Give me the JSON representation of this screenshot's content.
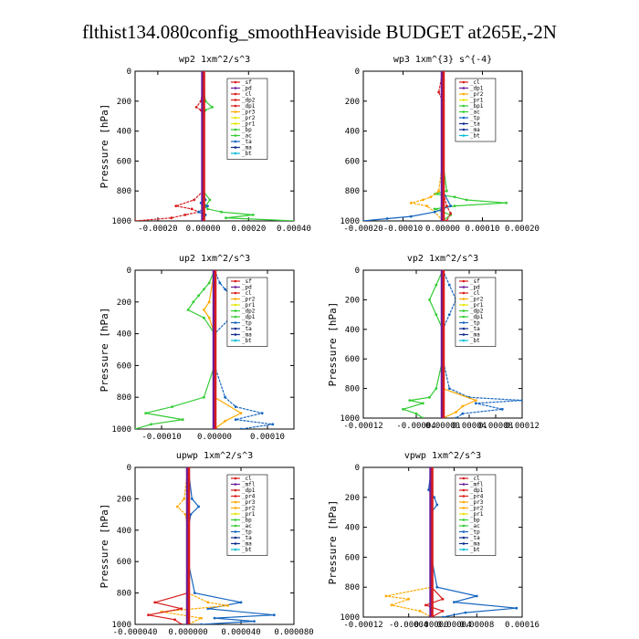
{
  "page_title": "flthist134.080config_smoothHeaviside  BUDGET at265E,-2N",
  "colors": {
    "red": "#d81b1b",
    "darkred": "#a01010",
    "purple": "#6a1b9a",
    "green": "#33cc33",
    "orange": "#ffaa00",
    "yellow": "#e6e600",
    "blue": "#1565c0",
    "darkblue": "#0d2b8c",
    "cyan": "#00bcd4",
    "black": "#000000"
  },
  "chart_data": [
    {
      "type": "line",
      "title": "wp2  1xm^2/s^3",
      "ylabel": "Pressure [hPa]",
      "xlim": [
        -0.0003,
        0.0004
      ],
      "ylim": [
        1000,
        0
      ],
      "xticks": [
        "-0.00020",
        "0.00000",
        "0.00020",
        "0.00040"
      ],
      "xtick_values": [
        -0.0002,
        0.0,
        0.0002,
        0.0004
      ],
      "yticks": [
        "0",
        "200",
        "400",
        "600",
        "800",
        "1000"
      ],
      "legend": [
        "_sf",
        "_pd",
        "_cl",
        "_dp2",
        "_dp1",
        "_pr3",
        "_pr2",
        "_pr1",
        "_bp",
        "_ac",
        "_ta",
        "_ma",
        "_bt"
      ],
      "legend_colors": [
        "red",
        "purple",
        "red",
        "red",
        "red",
        "orange",
        "yellow",
        "yellow",
        "green",
        "green",
        "blue",
        "darkblue",
        "cyan"
      ],
      "series": [
        {
          "name": "_bp",
          "color": "green",
          "y": [
            0,
            100,
            200,
            240,
            260,
            300,
            400,
            600,
            800,
            860,
            900,
            920,
            940,
            960,
            980,
            1000
          ],
          "x": [
            0,
            0,
            1e-05,
            4e-05,
            1e-05,
            0,
            0,
            0,
            0,
            3e-05,
            1e-05,
            2e-05,
            8e-05,
            0.00022,
            0.0001,
            0.0004
          ]
        },
        {
          "name": "_dp1",
          "color": "red",
          "y": [
            0,
            100,
            200,
            240,
            260,
            300,
            400,
            600,
            800,
            860,
            900,
            920,
            940,
            960,
            980,
            1000
          ],
          "x": [
            0,
            0,
            -1e-05,
            -3e-05,
            -1e-05,
            0,
            0,
            0,
            0,
            -4e-05,
            -0.00012,
            -5e-05,
            -2e-05,
            -8e-05,
            -0.00014,
            -0.0003
          ]
        },
        {
          "name": "_ta",
          "color": "blue",
          "y": [
            0,
            200,
            400,
            600,
            800,
            860,
            880,
            900,
            940,
            960,
            1000
          ],
          "x": [
            0,
            0,
            0,
            0,
            0,
            1e-05,
            -1e-05,
            2e-05,
            -2e-05,
            1e-05,
            0
          ]
        },
        {
          "name": "_pd",
          "color": "purple",
          "y": [
            0,
            200,
            400,
            600,
            800,
            1000
          ],
          "x": [
            0,
            0,
            0,
            0,
            0,
            0
          ]
        }
      ]
    },
    {
      "type": "line",
      "title": "wp3  1xm^{3} s^{-4}",
      "ylabel": "",
      "xlim": [
        -0.0002,
        0.0002
      ],
      "ylim": [
        1000,
        0
      ],
      "xticks": [
        "-0.00020",
        "-0.00010",
        "0.00000",
        "0.00010",
        "0.00020"
      ],
      "xtick_values": [
        -0.0002,
        -0.0001,
        0.0,
        0.0001,
        0.0002
      ],
      "yticks": [
        "0",
        "200",
        "400",
        "600",
        "800",
        "1000"
      ],
      "legend": [
        "_cl",
        "_dp1",
        "_pr2",
        "_pr1",
        "_bp1",
        "_ac",
        "_tp",
        "_ta",
        "_ma",
        "_bt"
      ],
      "legend_colors": [
        "red",
        "purple",
        "orange",
        "yellow",
        "green",
        "green",
        "blue",
        "darkblue",
        "darkblue",
        "cyan"
      ],
      "series": [
        {
          "name": "_bp1",
          "color": "green",
          "y": [
            0,
            200,
            400,
            600,
            800,
            820,
            840,
            860,
            880,
            900,
            920,
            960,
            1000
          ],
          "x": [
            0,
            0,
            0,
            0,
            1e-05,
            -2e-05,
            3e-05,
            6e-05,
            0.00016,
            3e-05,
            -2e-05,
            2e-05,
            0
          ]
        },
        {
          "name": "_pr2",
          "color": "orange",
          "y": [
            0,
            200,
            400,
            600,
            800,
            840,
            860,
            880,
            900,
            940,
            1000
          ],
          "x": [
            0,
            0,
            0,
            0,
            -1e-05,
            -3e-05,
            -5e-05,
            -8e-05,
            -4e-05,
            -2e-05,
            0
          ]
        },
        {
          "name": "_tp",
          "color": "blue",
          "y": [
            0,
            200,
            400,
            600,
            800,
            900,
            940,
            970,
            985,
            1000
          ],
          "x": [
            0,
            0,
            0,
            0,
            0,
            2e-05,
            -2e-05,
            -8e-05,
            -0.00014,
            -0.0002
          ]
        },
        {
          "name": "_cl",
          "color": "red",
          "y": [
            0,
            140,
            200,
            400,
            600,
            800,
            900,
            950,
            1000
          ],
          "x": [
            0,
            -1e-05,
            0,
            0,
            0,
            0,
            1e-05,
            2e-05,
            1e-05
          ]
        }
      ]
    },
    {
      "type": "line",
      "title": "up2  1xm^2/s^3",
      "ylabel": "Pressure [hPa]",
      "xlim": [
        -0.00015,
        0.00015
      ],
      "ylim": [
        1000,
        0
      ],
      "xticks": [
        "-0.00010",
        "0.00000",
        "0.00010"
      ],
      "xtick_values": [
        -0.0001,
        0.0,
        0.0001
      ],
      "yticks": [
        "0",
        "200",
        "400",
        "600",
        "800",
        "1000"
      ],
      "legend": [
        "_sf",
        "_pd",
        "_cl",
        "_pr2",
        "_pr1",
        "_dp2",
        "_dp1",
        "_tp",
        "_ta",
        "_ma",
        "_bt"
      ],
      "legend_colors": [
        "red",
        "purple",
        "red",
        "orange",
        "yellow",
        "green",
        "green",
        "blue",
        "darkblue",
        "darkblue",
        "cyan"
      ],
      "series": [
        {
          "name": "_dp1",
          "color": "green",
          "y": [
            0,
            80,
            120,
            160,
            200,
            250,
            300,
            400,
            600,
            800,
            860,
            900,
            940,
            970,
            1000
          ],
          "x": [
            0,
            -1e-05,
            -2e-05,
            -3e-05,
            -4e-05,
            -5e-05,
            -2e-05,
            0,
            0,
            -2e-05,
            -8e-05,
            -0.00013,
            -6e-05,
            -0.00012,
            -0.00015
          ]
        },
        {
          "name": "_tp",
          "color": "blue",
          "y": [
            0,
            80,
            120,
            160,
            200,
            250,
            300,
            400,
            600,
            800,
            860,
            900,
            940,
            970,
            1000
          ],
          "x": [
            0,
            1e-05,
            2e-05,
            3e-05,
            5e-05,
            8e-05,
            3e-05,
            0,
            0,
            2e-05,
            4e-05,
            9e-05,
            4e-05,
            0.00011,
            5e-05
          ]
        },
        {
          "name": "_pr2",
          "color": "orange",
          "y": [
            0,
            200,
            250,
            300,
            400,
            600,
            800,
            900,
            950,
            1000
          ],
          "x": [
            0,
            -1e-05,
            -2e-05,
            -1e-05,
            0,
            0,
            0,
            5e-05,
            2e-05,
            0
          ]
        },
        {
          "name": "_cl",
          "color": "red",
          "y": [
            0,
            200,
            400,
            600,
            800,
            1000
          ],
          "x": [
            0,
            0,
            0,
            0,
            0,
            0
          ]
        }
      ]
    },
    {
      "type": "line",
      "title": "vp2  1xm^2/s^3",
      "ylabel": "Pressure [hPa]",
      "xlim": [
        -0.00012,
        0.00012
      ],
      "ylim": [
        1000,
        0
      ],
      "xticks": [
        "-0.00012",
        "-0.00004",
        "0.00000",
        "0.00004",
        "0.00008",
        "0.00012"
      ],
      "xtick_values": [
        -0.00012,
        -4e-05,
        0.0,
        4e-05,
        8e-05,
        0.00012
      ],
      "yticks": [
        "0",
        "200",
        "400",
        "600",
        "800",
        "1000"
      ],
      "legend": [
        "_sf",
        "_pd",
        "_cl",
        "_pr2",
        "_pr1",
        "_dp2",
        "_dp1",
        "_tp",
        "_ta",
        "_ma",
        "_bt"
      ],
      "legend_colors": [
        "red",
        "purple",
        "red",
        "orange",
        "yellow",
        "green",
        "green",
        "blue",
        "darkblue",
        "darkblue",
        "cyan"
      ],
      "series": [
        {
          "name": "_dp1",
          "color": "green",
          "y": [
            0,
            100,
            200,
            300,
            400,
            600,
            800,
            860,
            880,
            900,
            940,
            970,
            1000
          ],
          "x": [
            0,
            -1e-05,
            -2e-05,
            -1e-05,
            0,
            0,
            -1e-05,
            -2e-05,
            -5e-05,
            -3e-05,
            -6e-05,
            -4e-05,
            -3e-05
          ]
        },
        {
          "name": "_tp",
          "color": "blue",
          "y": [
            0,
            100,
            200,
            300,
            400,
            600,
            800,
            860,
            880,
            900,
            940,
            970,
            1000
          ],
          "x": [
            0,
            1e-05,
            2e-05,
            1e-05,
            0,
            0,
            1e-05,
            4e-05,
            0.00012,
            5e-05,
            9e-05,
            3e-05,
            2e-05
          ]
        },
        {
          "name": "_pr2",
          "color": "orange",
          "y": [
            0,
            200,
            400,
            600,
            800,
            880,
            920,
            960,
            1000
          ],
          "x": [
            0,
            0,
            0,
            0,
            0,
            5e-05,
            3e-05,
            2e-05,
            0
          ]
        },
        {
          "name": "_cl",
          "color": "red",
          "y": [
            0,
            200,
            400,
            600,
            800,
            1000
          ],
          "x": [
            0,
            0,
            0,
            0,
            0,
            0
          ]
        }
      ]
    },
    {
      "type": "line",
      "title": "upwp  1xm^2/s^3",
      "ylabel": "Pressure [hPa]",
      "xlim": [
        -4e-05,
        8e-05
      ],
      "ylim": [
        1000,
        0
      ],
      "xticks": [
        "-0.000040",
        "0.000000",
        "0.000040",
        "0.000080"
      ],
      "xtick_values": [
        -4e-05,
        0.0,
        4e-05,
        8e-05
      ],
      "yticks": [
        "0",
        "200",
        "400",
        "600",
        "800",
        "1000"
      ],
      "legend": [
        "_cl",
        "_mfl",
        "_dp1",
        "_pr4",
        "_pr3",
        "_pr2",
        "_pr1",
        "_bp",
        "_ac",
        "_tp",
        "_ta",
        "_ma",
        "_bt"
      ],
      "legend_colors": [
        "red",
        "purple",
        "red",
        "red",
        "orange",
        "orange",
        "yellow",
        "green",
        "green",
        "blue",
        "darkblue",
        "darkblue",
        "cyan"
      ],
      "series": [
        {
          "name": "_ta",
          "color": "blue",
          "y": [
            0,
            200,
            250,
            300,
            400,
            600,
            800,
            860,
            900,
            940,
            960,
            980,
            1000
          ],
          "x": [
            0,
            3e-06,
            8e-06,
            2e-06,
            0,
            0,
            5e-06,
            4e-05,
            1.5e-05,
            6.5e-05,
            2e-05,
            5e-05,
            1e-05
          ]
        },
        {
          "name": "_pr3",
          "color": "orange",
          "y": [
            0,
            200,
            250,
            300,
            400,
            600,
            800,
            860,
            880,
            920,
            960,
            1000
          ],
          "x": [
            0,
            -3e-06,
            -8e-06,
            -2e-06,
            0,
            0,
            0,
            1.5e-05,
            3e-05,
            -2e-05,
            1e-05,
            0
          ]
        },
        {
          "name": "_dp1",
          "color": "red",
          "y": [
            0,
            200,
            400,
            600,
            800,
            860,
            900,
            940,
            970,
            1000
          ],
          "x": [
            0,
            0,
            0,
            0,
            0,
            -2.5e-05,
            -5e-06,
            -3e-05,
            -1e-05,
            -5e-06
          ]
        },
        {
          "name": "_mfl",
          "color": "purple",
          "y": [
            0,
            200,
            400,
            600,
            800,
            1000
          ],
          "x": [
            0,
            0,
            0,
            0,
            0,
            0
          ]
        }
      ]
    },
    {
      "type": "line",
      "title": "vpwp  1xm^2/s^3",
      "ylabel": "Pressure [hPa]",
      "xlim": [
        -0.00012,
        0.00016
      ],
      "ylim": [
        1000,
        0
      ],
      "xticks": [
        "-0.00012",
        "-0.00004",
        "0.00000",
        "0.00004",
        "0.00008",
        "0.00016"
      ],
      "xtick_values": [
        -0.00012,
        -4e-05,
        0.0,
        4e-05,
        8e-05,
        0.00016
      ],
      "yticks": [
        "0",
        "200",
        "400",
        "600",
        "800",
        "1000"
      ],
      "legend": [
        "_cl",
        "_mfl",
        "_dp1",
        "_pr4",
        "_pr3",
        "_pr2",
        "_pr1",
        "_bp",
        "_ac",
        "_tp",
        "_ta",
        "_ma",
        "_bt"
      ],
      "legend_colors": [
        "red",
        "purple",
        "red",
        "red",
        "orange",
        "orange",
        "yellow",
        "green",
        "green",
        "blue",
        "darkblue",
        "darkblue",
        "cyan"
      ],
      "series": [
        {
          "name": "_ta",
          "color": "blue",
          "y": [
            0,
            150,
            200,
            250,
            300,
            400,
            600,
            800,
            860,
            900,
            940,
            970,
            1000
          ],
          "x": [
            0,
            -5e-06,
            5e-06,
            1e-05,
            0,
            0,
            0,
            1e-05,
            8e-05,
            4e-05,
            0.00015,
            6e-05,
            2e-05
          ]
        },
        {
          "name": "_pr3",
          "color": "orange",
          "y": [
            0,
            200,
            400,
            600,
            800,
            860,
            880,
            920,
            960,
            1000
          ],
          "x": [
            0,
            0,
            0,
            0,
            0,
            -8e-05,
            -4e-05,
            -7e-05,
            -2e-05,
            0
          ]
        },
        {
          "name": "_dp1",
          "color": "red",
          "y": [
            0,
            200,
            400,
            600,
            800,
            880,
            920,
            960,
            1000
          ],
          "x": [
            0,
            0,
            0,
            0,
            0,
            2e-05,
            -1e-05,
            2e-05,
            0
          ]
        },
        {
          "name": "_mfl",
          "color": "purple",
          "y": [
            0,
            200,
            400,
            600,
            800,
            1000
          ],
          "x": [
            0,
            0,
            0,
            0,
            0,
            0
          ]
        }
      ]
    }
  ]
}
